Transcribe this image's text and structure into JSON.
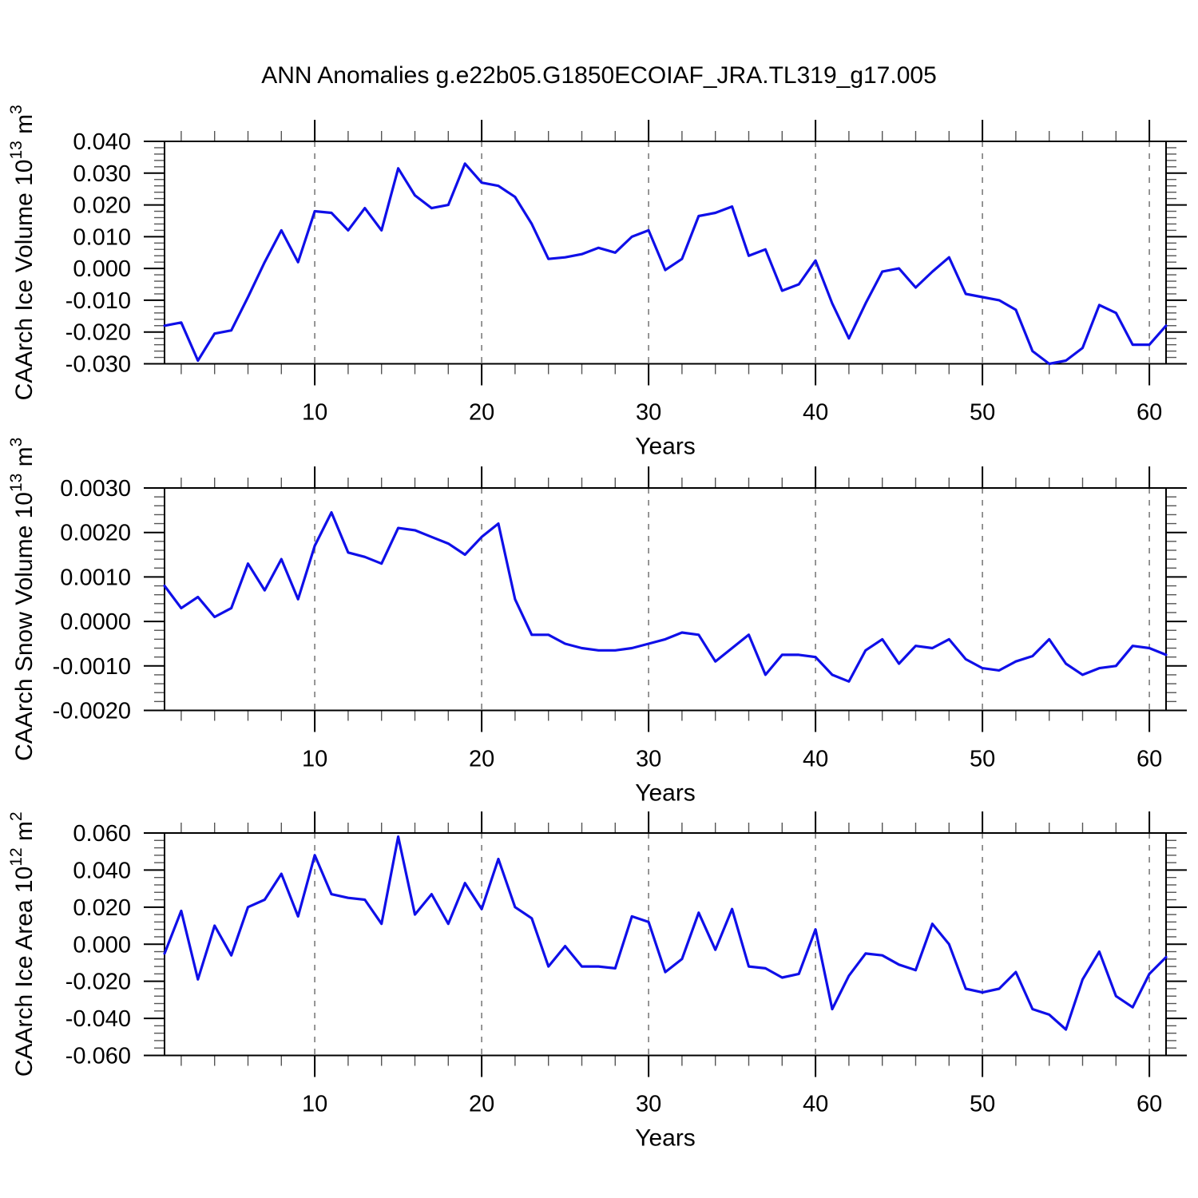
{
  "title": "ANN Anomalies g.e22b05.G1850ECOIAF_JRA.TL319_g17.005",
  "colors": {
    "line": "#0f0fe8",
    "grid": "#8a8a8a",
    "axis": "#000000",
    "minor_tick": "#555555",
    "text": "#000000",
    "background": "#ffffff"
  },
  "chart_data": {
    "type": "line",
    "title": "ANN Anomalies g.e22b05.G1850ECOIAF_JRA.TL319_g17.005",
    "xlabel": "Years",
    "x_start": 1,
    "x_end": 61,
    "x_major_ticks": [
      10,
      20,
      30,
      40,
      50,
      60
    ],
    "x_minor_step": 2,
    "grid": "vertical-dashed-at-major-x-ticks",
    "legend": "none",
    "series": [
      {
        "id": "caarch-ice-volume",
        "ylabel_plain": "CAArch Ice Volume 10^13 m^3",
        "ylabel_parts": [
          {
            "t": "CAArch Ice Volume 10"
          },
          {
            "t": "13",
            "sup": true
          },
          {
            "t": " m"
          },
          {
            "t": "3",
            "sup": true
          }
        ],
        "ylim": [
          -0.03,
          0.04
        ],
        "y_major_step": 0.01,
        "y_minor_step": 0.002,
        "y_tick_labels": [
          "0.040",
          "0.030",
          "0.020",
          "0.010",
          "0.000",
          "-0.010",
          "-0.020",
          "-0.030"
        ],
        "values": [
          -0.018,
          -0.017,
          -0.029,
          -0.0205,
          -0.0195,
          -0.009,
          0.002,
          0.012,
          0.002,
          0.018,
          0.0175,
          0.012,
          0.019,
          0.012,
          0.0315,
          0.023,
          0.019,
          0.02,
          0.033,
          0.027,
          0.026,
          0.0225,
          0.014,
          0.003,
          0.0035,
          0.0045,
          0.0065,
          0.005,
          0.01,
          0.012,
          -0.0005,
          0.003,
          0.0165,
          0.0175,
          0.0195,
          0.004,
          0.006,
          -0.007,
          -0.005,
          0.0025,
          -0.011,
          -0.022,
          -0.011,
          -0.001,
          0.0,
          -0.006,
          -0.001,
          0.0035,
          -0.008,
          -0.009,
          -0.01,
          -0.013,
          -0.026,
          -0.03,
          -0.029,
          -0.025,
          -0.0115,
          -0.014,
          -0.024,
          -0.024,
          -0.018
        ]
      },
      {
        "id": "caarch-snow-volume",
        "ylabel_plain": "CAArch Snow Volume 10^13 m^3",
        "ylabel_parts": [
          {
            "t": "CAArch Snow Volume 10"
          },
          {
            "t": "13",
            "sup": true
          },
          {
            "t": " m"
          },
          {
            "t": "3",
            "sup": true
          }
        ],
        "ylim": [
          -0.002,
          0.003
        ],
        "y_major_step": 0.001,
        "y_minor_step": 0.0002,
        "y_tick_labels": [
          "0.0030",
          "0.0020",
          "0.0010",
          "0.0000",
          "-0.0010",
          "-0.0020"
        ],
        "values": [
          0.0008,
          0.0003,
          0.00055,
          0.0001,
          0.0003,
          0.0013,
          0.0007,
          0.0014,
          0.0005,
          0.0017,
          0.00245,
          0.00155,
          0.00145,
          0.0013,
          0.0021,
          0.00205,
          0.0019,
          0.00175,
          0.0015,
          0.0019,
          0.0022,
          0.0005,
          -0.0003,
          -0.0003,
          -0.0005,
          -0.0006,
          -0.00065,
          -0.00065,
          -0.0006,
          -0.0005,
          -0.0004,
          -0.00025,
          -0.0003,
          -0.0009,
          -0.0006,
          -0.0003,
          -0.0012,
          -0.00075,
          -0.00075,
          -0.0008,
          -0.0012,
          -0.00135,
          -0.00065,
          -0.0004,
          -0.00095,
          -0.00055,
          -0.0006,
          -0.0004,
          -0.00085,
          -0.00105,
          -0.0011,
          -0.0009,
          -0.00078,
          -0.0004,
          -0.00095,
          -0.0012,
          -0.00105,
          -0.001,
          -0.00055,
          -0.0006,
          -0.00075
        ]
      },
      {
        "id": "caarch-ice-area",
        "ylabel_plain": "CAArch Ice Area 10^12 m^2",
        "ylabel_parts": [
          {
            "t": "CAArch Ice Area 10"
          },
          {
            "t": "12",
            "sup": true
          },
          {
            "t": " m"
          },
          {
            "t": "2",
            "sup": true
          }
        ],
        "ylim": [
          -0.06,
          0.06
        ],
        "y_major_step": 0.02,
        "y_minor_step": 0.004,
        "y_tick_labels": [
          "0.060",
          "0.040",
          "0.020",
          "0.000",
          "-0.020",
          "-0.040",
          "-0.060"
        ],
        "values": [
          -0.005,
          0.018,
          -0.019,
          0.01,
          -0.006,
          0.02,
          0.024,
          0.038,
          0.015,
          0.048,
          0.027,
          0.025,
          0.024,
          0.011,
          0.058,
          0.016,
          0.027,
          0.011,
          0.033,
          0.019,
          0.046,
          0.02,
          0.014,
          -0.012,
          -0.001,
          -0.012,
          -0.012,
          -0.013,
          0.015,
          0.012,
          -0.015,
          -0.008,
          0.017,
          -0.003,
          0.019,
          -0.012,
          -0.013,
          -0.018,
          -0.016,
          0.008,
          -0.035,
          -0.017,
          -0.005,
          -0.006,
          -0.011,
          -0.014,
          0.011,
          0.0,
          -0.024,
          -0.026,
          -0.024,
          -0.015,
          -0.035,
          -0.038,
          -0.046,
          -0.019,
          -0.004,
          -0.028,
          -0.034,
          -0.016,
          -0.007
        ]
      }
    ]
  }
}
